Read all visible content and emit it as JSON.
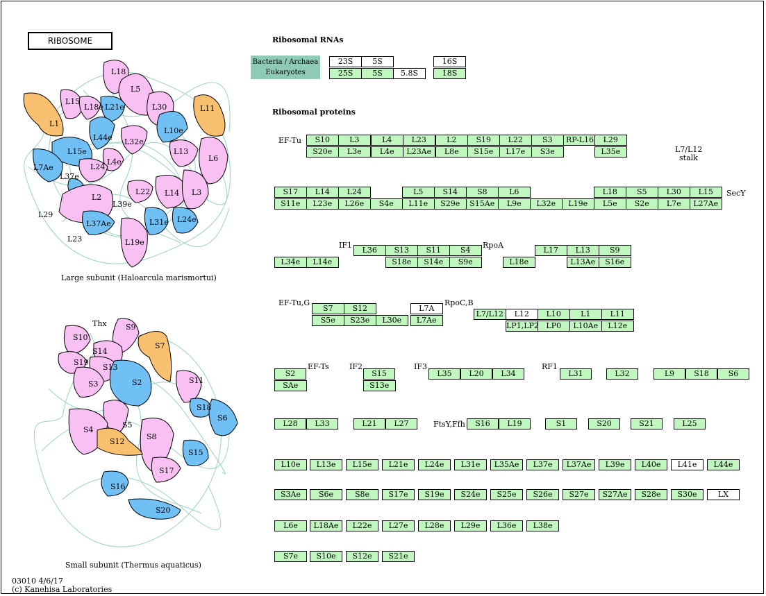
{
  "title": "RIBOSOME",
  "rna_header": "Ribosomal RNAs",
  "protein_header": "Ribosomal proteins",
  "legend": {
    "line1": "Bacteria / Archaea",
    "line2": "Eukaryotes"
  },
  "large_caption": "Large subunit (Haloarcula marismortui)",
  "small_caption": "Small subunit (Thermus aquaticus)",
  "footer": {
    "code": "03010 4/6/17",
    "copyright": "(c) Kanehisa Laboratories"
  },
  "side_labels": {
    "eftu": "EF-Tu",
    "l7l12_stalk_1": "L7/L12",
    "l7l12_stalk_2": "stalk",
    "secy": "SecY",
    "if1": "IF1",
    "rpoa": "RpoA",
    "eftug": "EF-Tu,G",
    "rpocb": "RpoC,B",
    "efts": "EF-Ts",
    "if2": "IF2",
    "if3": "IF3",
    "rf1": "RF1",
    "ftsy": "FtsY,Ffh"
  },
  "rna_boxes": [
    "23S",
    "5S",
    "16S",
    "25S",
    "5S",
    "5.8S",
    "18S"
  ],
  "protein_boxes": [
    "S10",
    "L3",
    "L4",
    "L23",
    "L2",
    "S19",
    "L22",
    "S3",
    "RP-L16",
    "L29",
    "S20e",
    "L3e",
    "L4e",
    "L23Ae",
    "L8e",
    "S15e",
    "L17e",
    "S3e",
    "L35e",
    "S17",
    "L14",
    "L24",
    "L5",
    "S14",
    "S8",
    "L6",
    "L18",
    "S5",
    "L30",
    "L15",
    "S11e",
    "L23e",
    "L26e",
    "S4e",
    "L11e",
    "S29e",
    "S15Ae",
    "L9e",
    "L32e",
    "L19e",
    "L5e",
    "S2e",
    "L7e",
    "L27Ae",
    "L36",
    "S13",
    "S11",
    "S4",
    "L17",
    "L13",
    "S9",
    "L34e",
    "L14e",
    "S18e",
    "S14e",
    "S9e",
    "L18e",
    "L13Ae",
    "S16e",
    "S7",
    "S12",
    "L7A",
    "S5e",
    "S23e",
    "L30e",
    "L7Ae",
    "L7/L12",
    "L12",
    "L10",
    "L1",
    "L11",
    "LP1,LP2",
    "LP0",
    "L10Ae",
    "L12e",
    "S2",
    "SAe",
    "S15",
    "S13e",
    "L35",
    "L20",
    "L34",
    "L31",
    "L32",
    "L9",
    "S18",
    "S6",
    "L28",
    "L33",
    "L21",
    "L27",
    "S16",
    "L19",
    "S1",
    "S20",
    "S21",
    "L25",
    "L10e",
    "L13e",
    "L15e",
    "L21e",
    "L24e",
    "L31e",
    "L35Ae",
    "L37e",
    "L37Ae",
    "L39e",
    "L40e",
    "L41e",
    "L44e",
    "S3Ae",
    "S6e",
    "S8e",
    "S17e",
    "S19e",
    "S24e",
    "S25e",
    "S26e",
    "S27e",
    "S27Ae",
    "S28e",
    "S30e",
    "LX",
    "L6e",
    "L18Ae",
    "L22e",
    "L27e",
    "L28e",
    "L29e",
    "L36e",
    "L38e",
    "S7e",
    "S10e",
    "S12e",
    "S21e"
  ],
  "large_subunit_labels": [
    "L18",
    "L5",
    "L15",
    "L18e",
    "L21e",
    "L30",
    "L11",
    "L1",
    "L44e",
    "L10e",
    "L32e",
    "L15e",
    "L13",
    "L4e",
    "L7Ae",
    "L24",
    "L6",
    "L37e",
    "L2",
    "L22",
    "L14",
    "L3",
    "L39e",
    "L29",
    "L37Ae",
    "L31e",
    "L24e",
    "L23",
    "L19e"
  ],
  "small_subunit_labels": [
    "Thx",
    "S9",
    "S10",
    "S14",
    "S19",
    "S7",
    "S13",
    "S3",
    "S2",
    "S11",
    "S18",
    "S6",
    "S5",
    "S4",
    "S8",
    "S12",
    "S15",
    "S17",
    "S16",
    "S20"
  ],
  "colors": {
    "pink": "#f9c0f4",
    "blue": "#70c0f5",
    "orange": "#f9c070",
    "green_box": "#bff7be",
    "legend": "#8ecab4",
    "rna_lines": "#7fc8b0"
  }
}
